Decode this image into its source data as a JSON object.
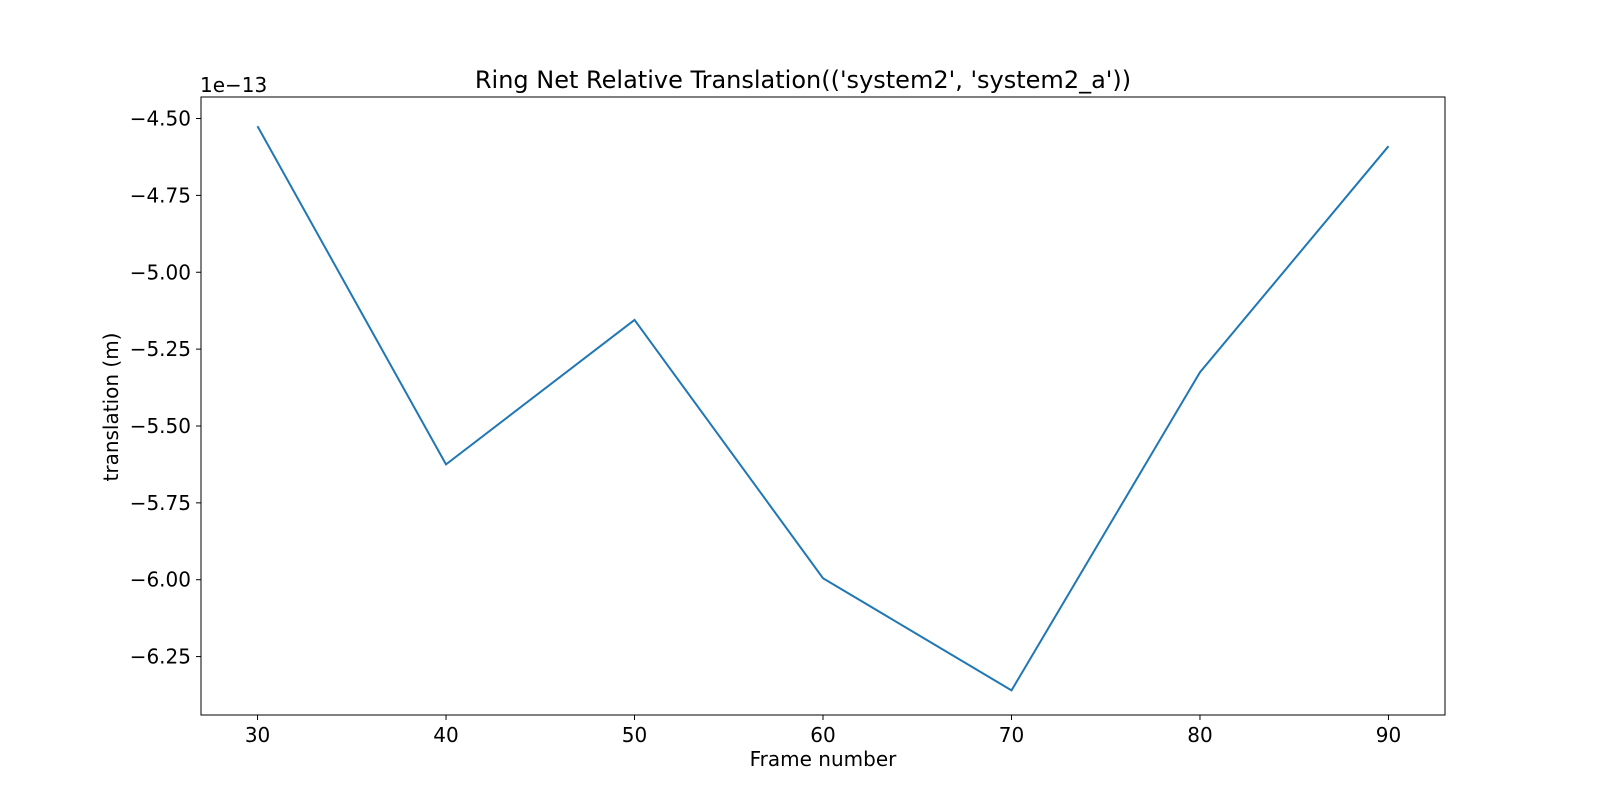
{
  "chart_data": {
    "type": "line",
    "title": "Ring Net Relative Translation(('system2', 'system2_a'))",
    "xlabel": "Frame number",
    "ylabel": "translation (m)",
    "y_offset_text": "1e−13",
    "x": [
      30,
      40,
      50,
      60,
      70,
      80,
      90
    ],
    "series": [
      {
        "values": [
          -4.525,
          -5.625,
          -5.155,
          -5.995,
          -6.36,
          -5.325,
          -4.59
        ]
      }
    ],
    "xlim": [
      27,
      93
    ],
    "ylim": [
      -6.44,
      -4.43
    ],
    "xticks": [
      30,
      40,
      50,
      60,
      70,
      80,
      90
    ],
    "xtick_labels": [
      "30",
      "40",
      "50",
      "60",
      "70",
      "80",
      "90"
    ],
    "yticks": [
      -4.5,
      -4.75,
      -5.0,
      -5.25,
      -5.5,
      -5.75,
      -6.0,
      -6.25
    ],
    "ytick_labels": [
      "−4.50",
      "−4.75",
      "−5.00",
      "−5.25",
      "−5.50",
      "−5.75",
      "−6.00",
      "−6.25"
    ],
    "line_color": "#1f77b4",
    "grid": false
  }
}
